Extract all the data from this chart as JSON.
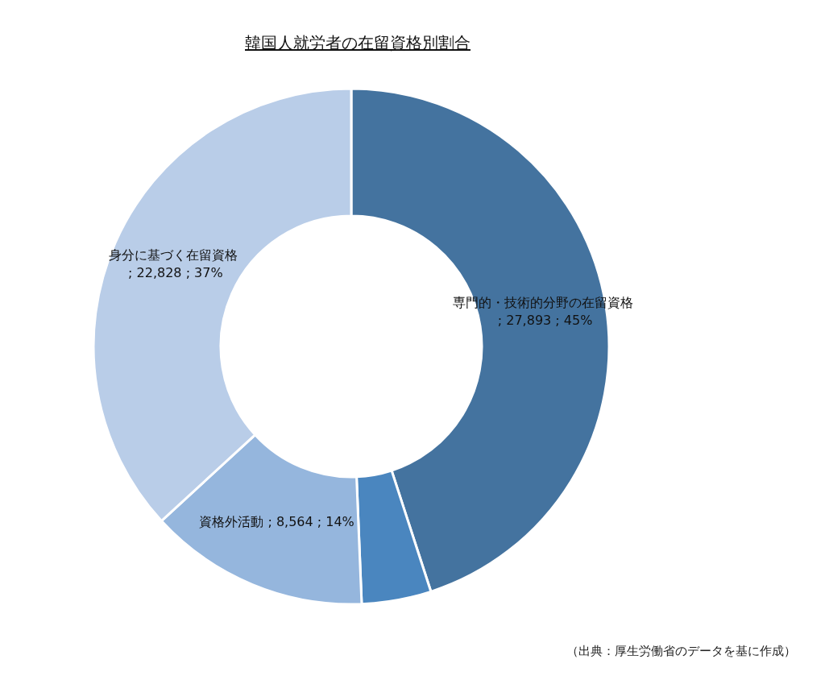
{
  "chart_data": {
    "type": "donut",
    "title": "韓国人就労者の在留資格別割合",
    "categories": [
      "専門的・技術的分野の在留資格",
      null,
      "資格外活動",
      "身分に基づく在留資格"
    ],
    "values": [
      27893,
      2700,
      8564,
      22828
    ],
    "colors": [
      "#44739f",
      "#4a86bf",
      "#95b6dd",
      "#b9cde8"
    ],
    "value_labels": [
      "; 27,893 ; 45%",
      null,
      "; 8,564 ; 14%",
      "; 22,828 ; 37%"
    ],
    "legend": false,
    "annotations": [
      "（出典：厚生労働省のデータを基に作成）"
    ]
  }
}
